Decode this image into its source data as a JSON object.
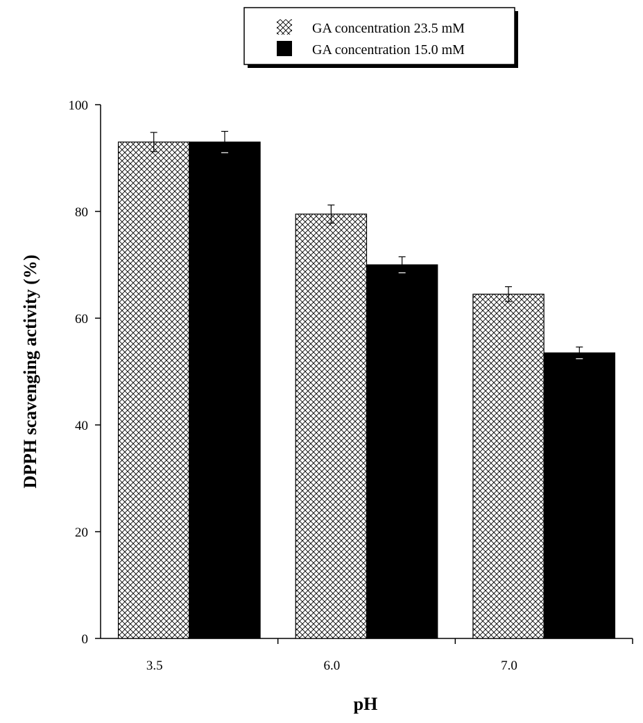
{
  "chart_data": {
    "type": "bar",
    "title": "",
    "xlabel": "pH",
    "ylabel": "DPPH scavenging activity (%)",
    "categories": [
      "3.5",
      "6.0",
      "7.0"
    ],
    "ylim": [
      0,
      100
    ],
    "yticks": [
      0,
      20,
      40,
      60,
      80,
      100
    ],
    "grid": false,
    "legend_position": "top-right",
    "series": [
      {
        "name": "GA concentration 23.5 mM",
        "values": [
          93,
          79.5,
          64.5
        ],
        "errors": [
          1.8,
          1.7,
          1.4
        ],
        "fill": "crosshatch",
        "color": "#000000"
      },
      {
        "name": "GA concentration 15.0 mM",
        "values": [
          93,
          70,
          53.5
        ],
        "errors": [
          2.0,
          1.5,
          1.1
        ],
        "fill": "solid",
        "color": "#000000"
      }
    ]
  }
}
